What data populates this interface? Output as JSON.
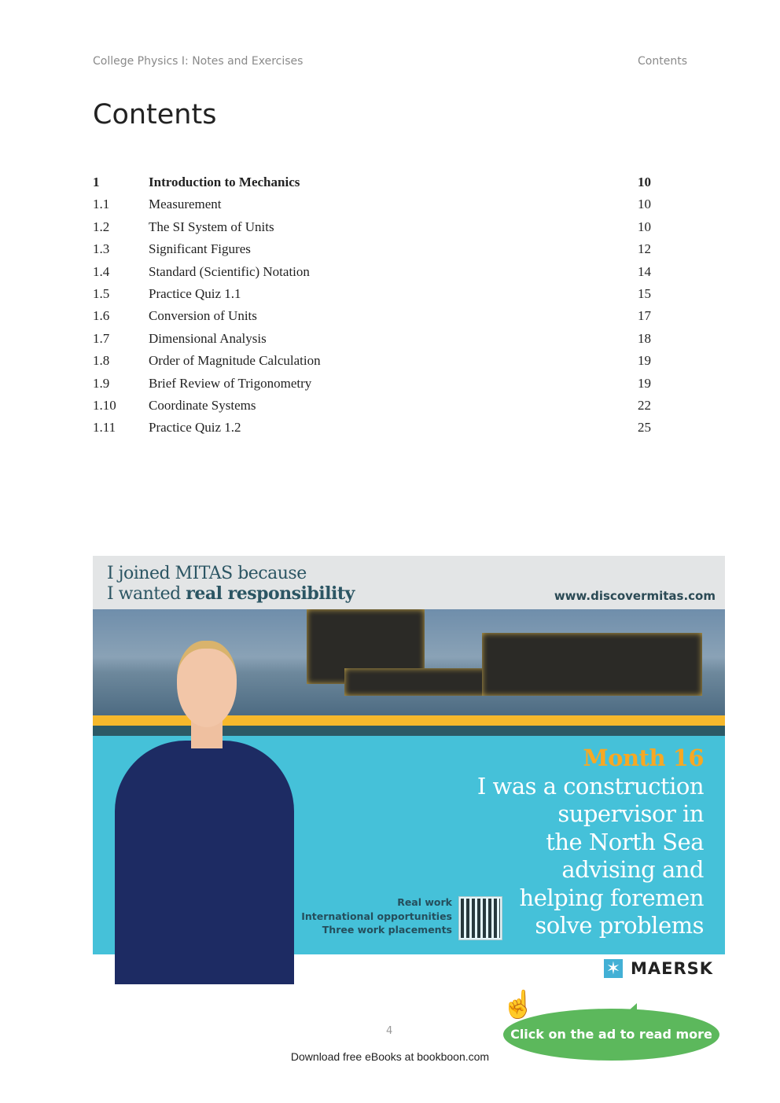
{
  "header": {
    "book_title": "College Physics I: Notes and Exercises",
    "section": "Contents"
  },
  "page_title": "Contents",
  "toc": [
    {
      "num": "1",
      "title": "Introduction to Mechanics",
      "page": "10",
      "bold": true
    },
    {
      "num": "1.1",
      "title": "Measurement",
      "page": "10"
    },
    {
      "num": "1.2",
      "title": "The SI System of Units",
      "page": "10"
    },
    {
      "num": "1.3",
      "title": "Significant Figures",
      "page": "12"
    },
    {
      "num": "1.4",
      "title": "Standard (Scientific) Notation",
      "page": "14"
    },
    {
      "num": "1.5",
      "title": "Practice Quiz 1.1",
      "page": "15"
    },
    {
      "num": "1.6",
      "title": "Conversion of Units",
      "page": "17"
    },
    {
      "num": "1.7",
      "title": "Dimensional Analysis",
      "page": "18"
    },
    {
      "num": "1.8",
      "title": "Order of Magnitude Calculation",
      "page": "19"
    },
    {
      "num": "1.9",
      "title": "Brief Review of Trigonometry",
      "page": "19"
    },
    {
      "num": "1.10",
      "title": "Coordinate Systems",
      "page": "22"
    },
    {
      "num": "1.11",
      "title": "Practice Quiz 1.2",
      "page": "25"
    }
  ],
  "ad": {
    "tagline_1": "I joined MITAS because",
    "tagline_2_prefix": "I wanted ",
    "tagline_2_bold": "real responsibility",
    "url": "www.discovermitas.com",
    "month": "Month 16",
    "claim_lines": [
      "I was a construction",
      "supervisor in",
      "the North Sea",
      "advising and",
      "helping foremen",
      "solve problems"
    ],
    "bullets": [
      "Real work",
      "International opportunities",
      "Three work placements"
    ],
    "brand": "MAERSK",
    "cta": "Click on the ad to read more",
    "colors": {
      "cyan": "#45c1d9",
      "yellow": "#f6b82c",
      "orange": "#f7a823",
      "green": "#5cb85c",
      "teal": "#2c5966"
    }
  },
  "page_number": "4",
  "footer": "Download free eBooks at bookboon.com"
}
